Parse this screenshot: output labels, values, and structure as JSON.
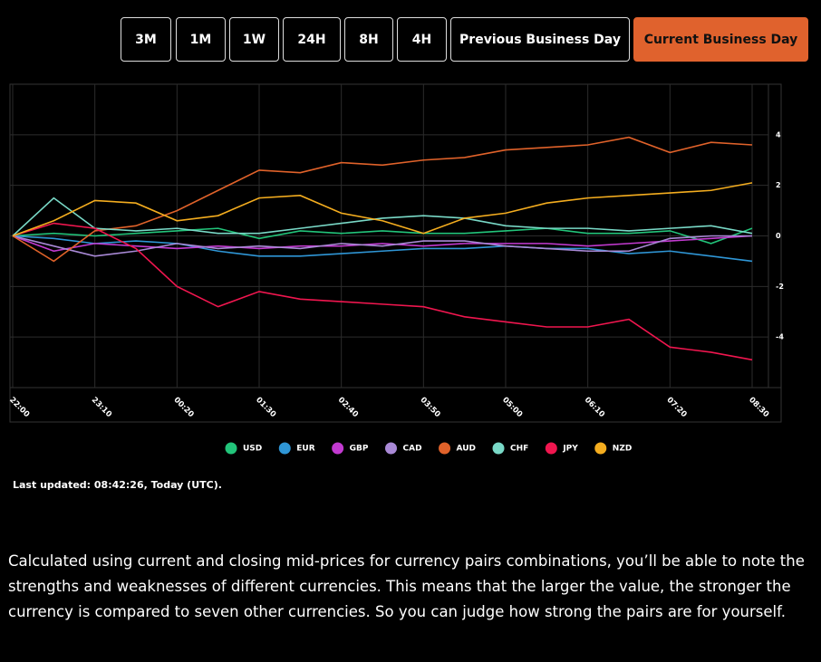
{
  "buttons": [
    "3M",
    "1M",
    "1W",
    "24H",
    "8H",
    "4H",
    "Previous Business Day",
    "Current Business Day"
  ],
  "chart_data": {
    "type": "line",
    "categories": [
      "22:00",
      null,
      "23:10",
      null,
      "00:20",
      null,
      "01:30",
      null,
      "02:40",
      null,
      "03:50",
      null,
      "05:00",
      null,
      "06:10",
      null,
      "07:20",
      null,
      "08:30"
    ],
    "ylim": [
      -6,
      6
    ],
    "yticks": [
      -4,
      -2,
      0,
      2,
      4
    ],
    "grid": true,
    "legend": "bottom",
    "series": [
      {
        "name": "USD",
        "color": "#22c47a",
        "values": [
          0,
          0.1,
          0,
          0.1,
          0.2,
          0.3,
          -0.1,
          0.2,
          0.1,
          0.2,
          0.1,
          0.1,
          0.2,
          0.3,
          0.1,
          0.1,
          0.2,
          -0.3,
          0.3
        ]
      },
      {
        "name": "EUR",
        "color": "#2f96d6",
        "values": [
          0,
          -0.1,
          -0.3,
          -0.2,
          -0.3,
          -0.6,
          -0.8,
          -0.8,
          -0.7,
          -0.6,
          -0.5,
          -0.5,
          -0.4,
          -0.5,
          -0.5,
          -0.7,
          -0.6,
          -0.8,
          -1.0
        ]
      },
      {
        "name": "GBP",
        "color": "#c23ad0",
        "values": [
          0,
          -0.6,
          -0.3,
          -0.4,
          -0.5,
          -0.4,
          -0.5,
          -0.4,
          -0.4,
          -0.3,
          -0.4,
          -0.3,
          -0.3,
          -0.3,
          -0.4,
          -0.3,
          -0.2,
          -0.1,
          0
        ]
      },
      {
        "name": "CAD",
        "color": "#a989d6",
        "values": [
          0,
          -0.4,
          -0.8,
          -0.6,
          -0.3,
          -0.5,
          -0.4,
          -0.5,
          -0.3,
          -0.4,
          -0.2,
          -0.2,
          -0.4,
          -0.5,
          -0.6,
          -0.6,
          -0.1,
          0,
          0
        ]
      },
      {
        "name": "AUD",
        "color": "#e0622a",
        "values": [
          0,
          -1.0,
          0.2,
          0.4,
          1.0,
          1.8,
          2.6,
          2.5,
          2.9,
          2.8,
          3.0,
          3.1,
          3.4,
          3.5,
          3.6,
          3.9,
          3.3,
          3.7,
          3.6
        ]
      },
      {
        "name": "CHF",
        "color": "#79d9c7",
        "values": [
          0,
          1.5,
          0.3,
          0.2,
          0.3,
          0.1,
          0.1,
          0.3,
          0.5,
          0.7,
          0.8,
          0.7,
          0.4,
          0.3,
          0.3,
          0.2,
          0.3,
          0.4,
          0.1
        ]
      },
      {
        "name": "JPY",
        "color": "#f0164f",
        "values": [
          0,
          0.5,
          0.3,
          -0.5,
          -2.0,
          -2.8,
          -2.2,
          -2.5,
          -2.6,
          -2.7,
          -2.8,
          -3.2,
          -3.4,
          -3.6,
          -3.6,
          -3.3,
          -4.4,
          -4.6,
          -4.9
        ]
      },
      {
        "name": "NZD",
        "color": "#f4ad1f",
        "values": [
          0,
          0.6,
          1.4,
          1.3,
          0.6,
          0.8,
          1.5,
          1.6,
          0.9,
          0.6,
          0.1,
          0.7,
          0.9,
          1.3,
          1.5,
          1.6,
          1.7,
          1.8,
          2.1
        ]
      }
    ]
  },
  "last_updated": "Last updated: 08:42:26, Today (UTC).",
  "description": "Calculated using current and closing mid-prices for currency pairs combinations, you’ll be able to note the strengths and weaknesses of different currencies. This means that the larger the value, the stronger the currency is compared to seven other currencies. So you can judge how strong the pairs are for yourself."
}
